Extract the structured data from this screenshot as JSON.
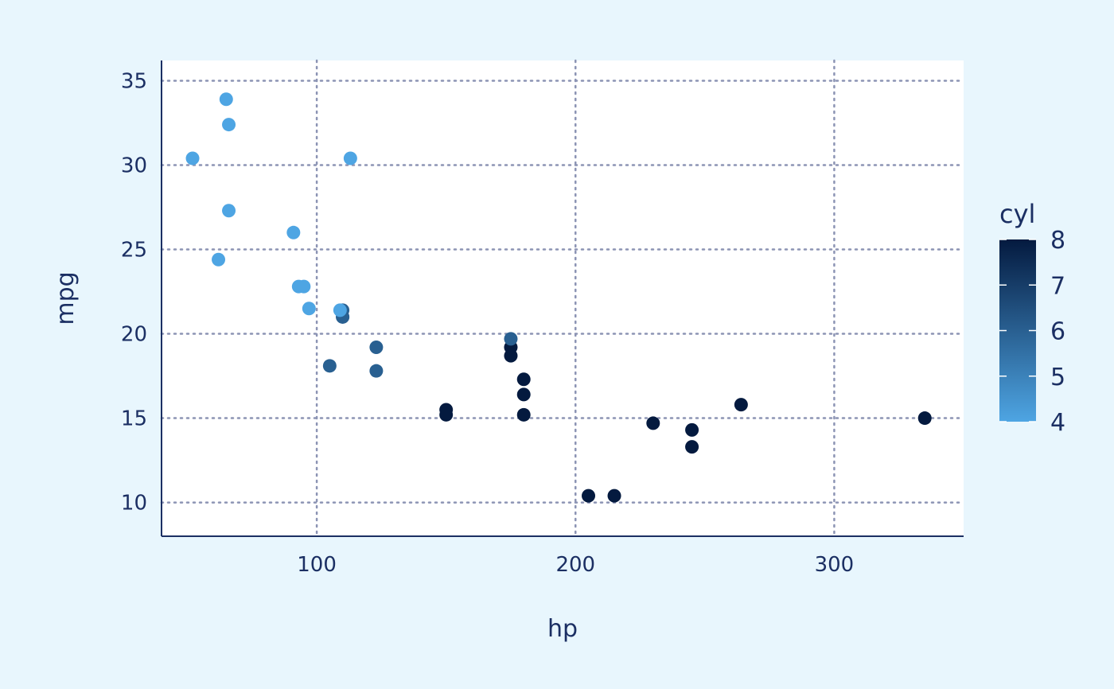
{
  "chart_data": {
    "type": "scatter",
    "xlabel": "hp",
    "ylabel": "mpg",
    "xlim": [
      40,
      350
    ],
    "ylim": [
      8,
      36.2
    ],
    "x_ticks": [
      100,
      200,
      300
    ],
    "y_ticks": [
      10,
      15,
      20,
      25,
      30,
      35
    ],
    "grid": true,
    "legend": {
      "title": "cyl",
      "placement": "right",
      "ticks": [
        4,
        5,
        6,
        7,
        8
      ],
      "low_color": "#4EA5E3",
      "high_color": "#041A3F"
    },
    "colors": {
      "background": "#E8F6FD",
      "panel": "#FFFFFF",
      "grid": "#8C94B4",
      "axis": "#1B2F63",
      "text": "#1B2F63"
    },
    "points": [
      {
        "x": 110,
        "y": 21.0,
        "cyl": 6
      },
      {
        "x": 110,
        "y": 21.0,
        "cyl": 6
      },
      {
        "x": 93,
        "y": 22.8,
        "cyl": 4
      },
      {
        "x": 110,
        "y": 21.4,
        "cyl": 6
      },
      {
        "x": 175,
        "y": 18.7,
        "cyl": 8
      },
      {
        "x": 105,
        "y": 18.1,
        "cyl": 6
      },
      {
        "x": 245,
        "y": 14.3,
        "cyl": 8
      },
      {
        "x": 62,
        "y": 24.4,
        "cyl": 4
      },
      {
        "x": 95,
        "y": 22.8,
        "cyl": 4
      },
      {
        "x": 123,
        "y": 19.2,
        "cyl": 6
      },
      {
        "x": 123,
        "y": 17.8,
        "cyl": 6
      },
      {
        "x": 180,
        "y": 16.4,
        "cyl": 8
      },
      {
        "x": 180,
        "y": 17.3,
        "cyl": 8
      },
      {
        "x": 180,
        "y": 15.2,
        "cyl": 8
      },
      {
        "x": 205,
        "y": 10.4,
        "cyl": 8
      },
      {
        "x": 215,
        "y": 10.4,
        "cyl": 8
      },
      {
        "x": 230,
        "y": 14.7,
        "cyl": 8
      },
      {
        "x": 66,
        "y": 32.4,
        "cyl": 4
      },
      {
        "x": 52,
        "y": 30.4,
        "cyl": 4
      },
      {
        "x": 65,
        "y": 33.9,
        "cyl": 4
      },
      {
        "x": 97,
        "y": 21.5,
        "cyl": 4
      },
      {
        "x": 150,
        "y": 15.5,
        "cyl": 8
      },
      {
        "x": 150,
        "y": 15.2,
        "cyl": 8
      },
      {
        "x": 245,
        "y": 13.3,
        "cyl": 8
      },
      {
        "x": 175,
        "y": 19.2,
        "cyl": 8
      },
      {
        "x": 66,
        "y": 27.3,
        "cyl": 4
      },
      {
        "x": 91,
        "y": 26.0,
        "cyl": 4
      },
      {
        "x": 113,
        "y": 30.4,
        "cyl": 4
      },
      {
        "x": 264,
        "y": 15.8,
        "cyl": 8
      },
      {
        "x": 175,
        "y": 19.7,
        "cyl": 6
      },
      {
        "x": 335,
        "y": 15.0,
        "cyl": 8
      },
      {
        "x": 109,
        "y": 21.4,
        "cyl": 4
      }
    ]
  }
}
